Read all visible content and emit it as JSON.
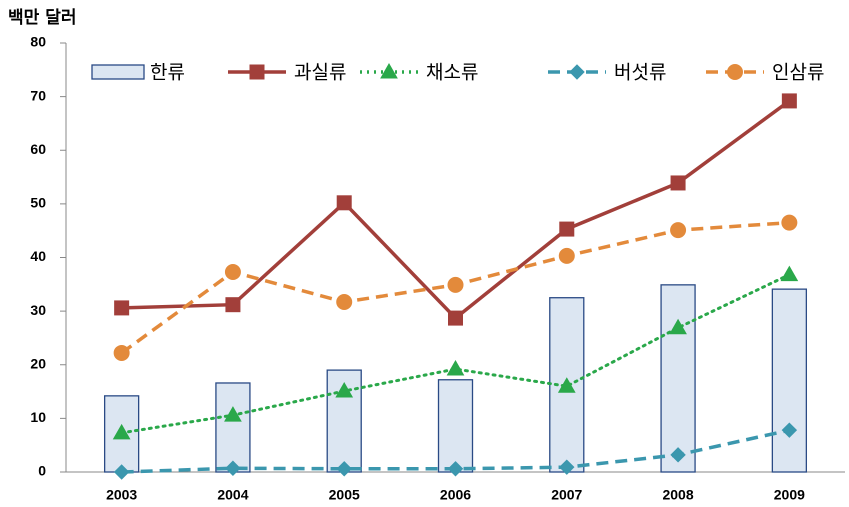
{
  "chart_data": {
    "type": "combo",
    "y_label": "백만 달러",
    "categories": [
      "2003",
      "2004",
      "2005",
      "2006",
      "2007",
      "2008",
      "2009"
    ],
    "ylim": [
      0,
      80
    ],
    "yticks": [
      0,
      10,
      20,
      30,
      40,
      50,
      60,
      70,
      80
    ],
    "grid": false,
    "series": [
      {
        "name": "한류",
        "type": "bar",
        "color": "#dce6f2",
        "values": [
          14.2,
          16.6,
          19.0,
          17.2,
          32.5,
          34.9,
          34.1
        ]
      },
      {
        "name": "과실류",
        "type": "line",
        "marker": "square",
        "dash": "solid",
        "color": "#a23f3a",
        "values": [
          30.6,
          31.2,
          50.2,
          28.7,
          45.3,
          53.9,
          69.2
        ]
      },
      {
        "name": "채소류",
        "type": "line",
        "marker": "triangle",
        "dash": "dot",
        "color": "#2aa84a",
        "values": [
          7.3,
          10.6,
          15.1,
          19.2,
          16.0,
          26.9,
          36.8
        ]
      },
      {
        "name": "버섯류",
        "type": "line",
        "marker": "diamond",
        "dash": "dash",
        "color": "#3b97ae",
        "values": [
          0,
          0.7,
          0.6,
          0.6,
          0.9,
          3.2,
          7.8
        ]
      },
      {
        "name": "인삼류",
        "type": "line",
        "marker": "circle",
        "dash": "dash",
        "color": "#e38a3b",
        "values": [
          22.2,
          37.3,
          31.7,
          34.9,
          40.3,
          45.1,
          46.5
        ]
      }
    ]
  }
}
